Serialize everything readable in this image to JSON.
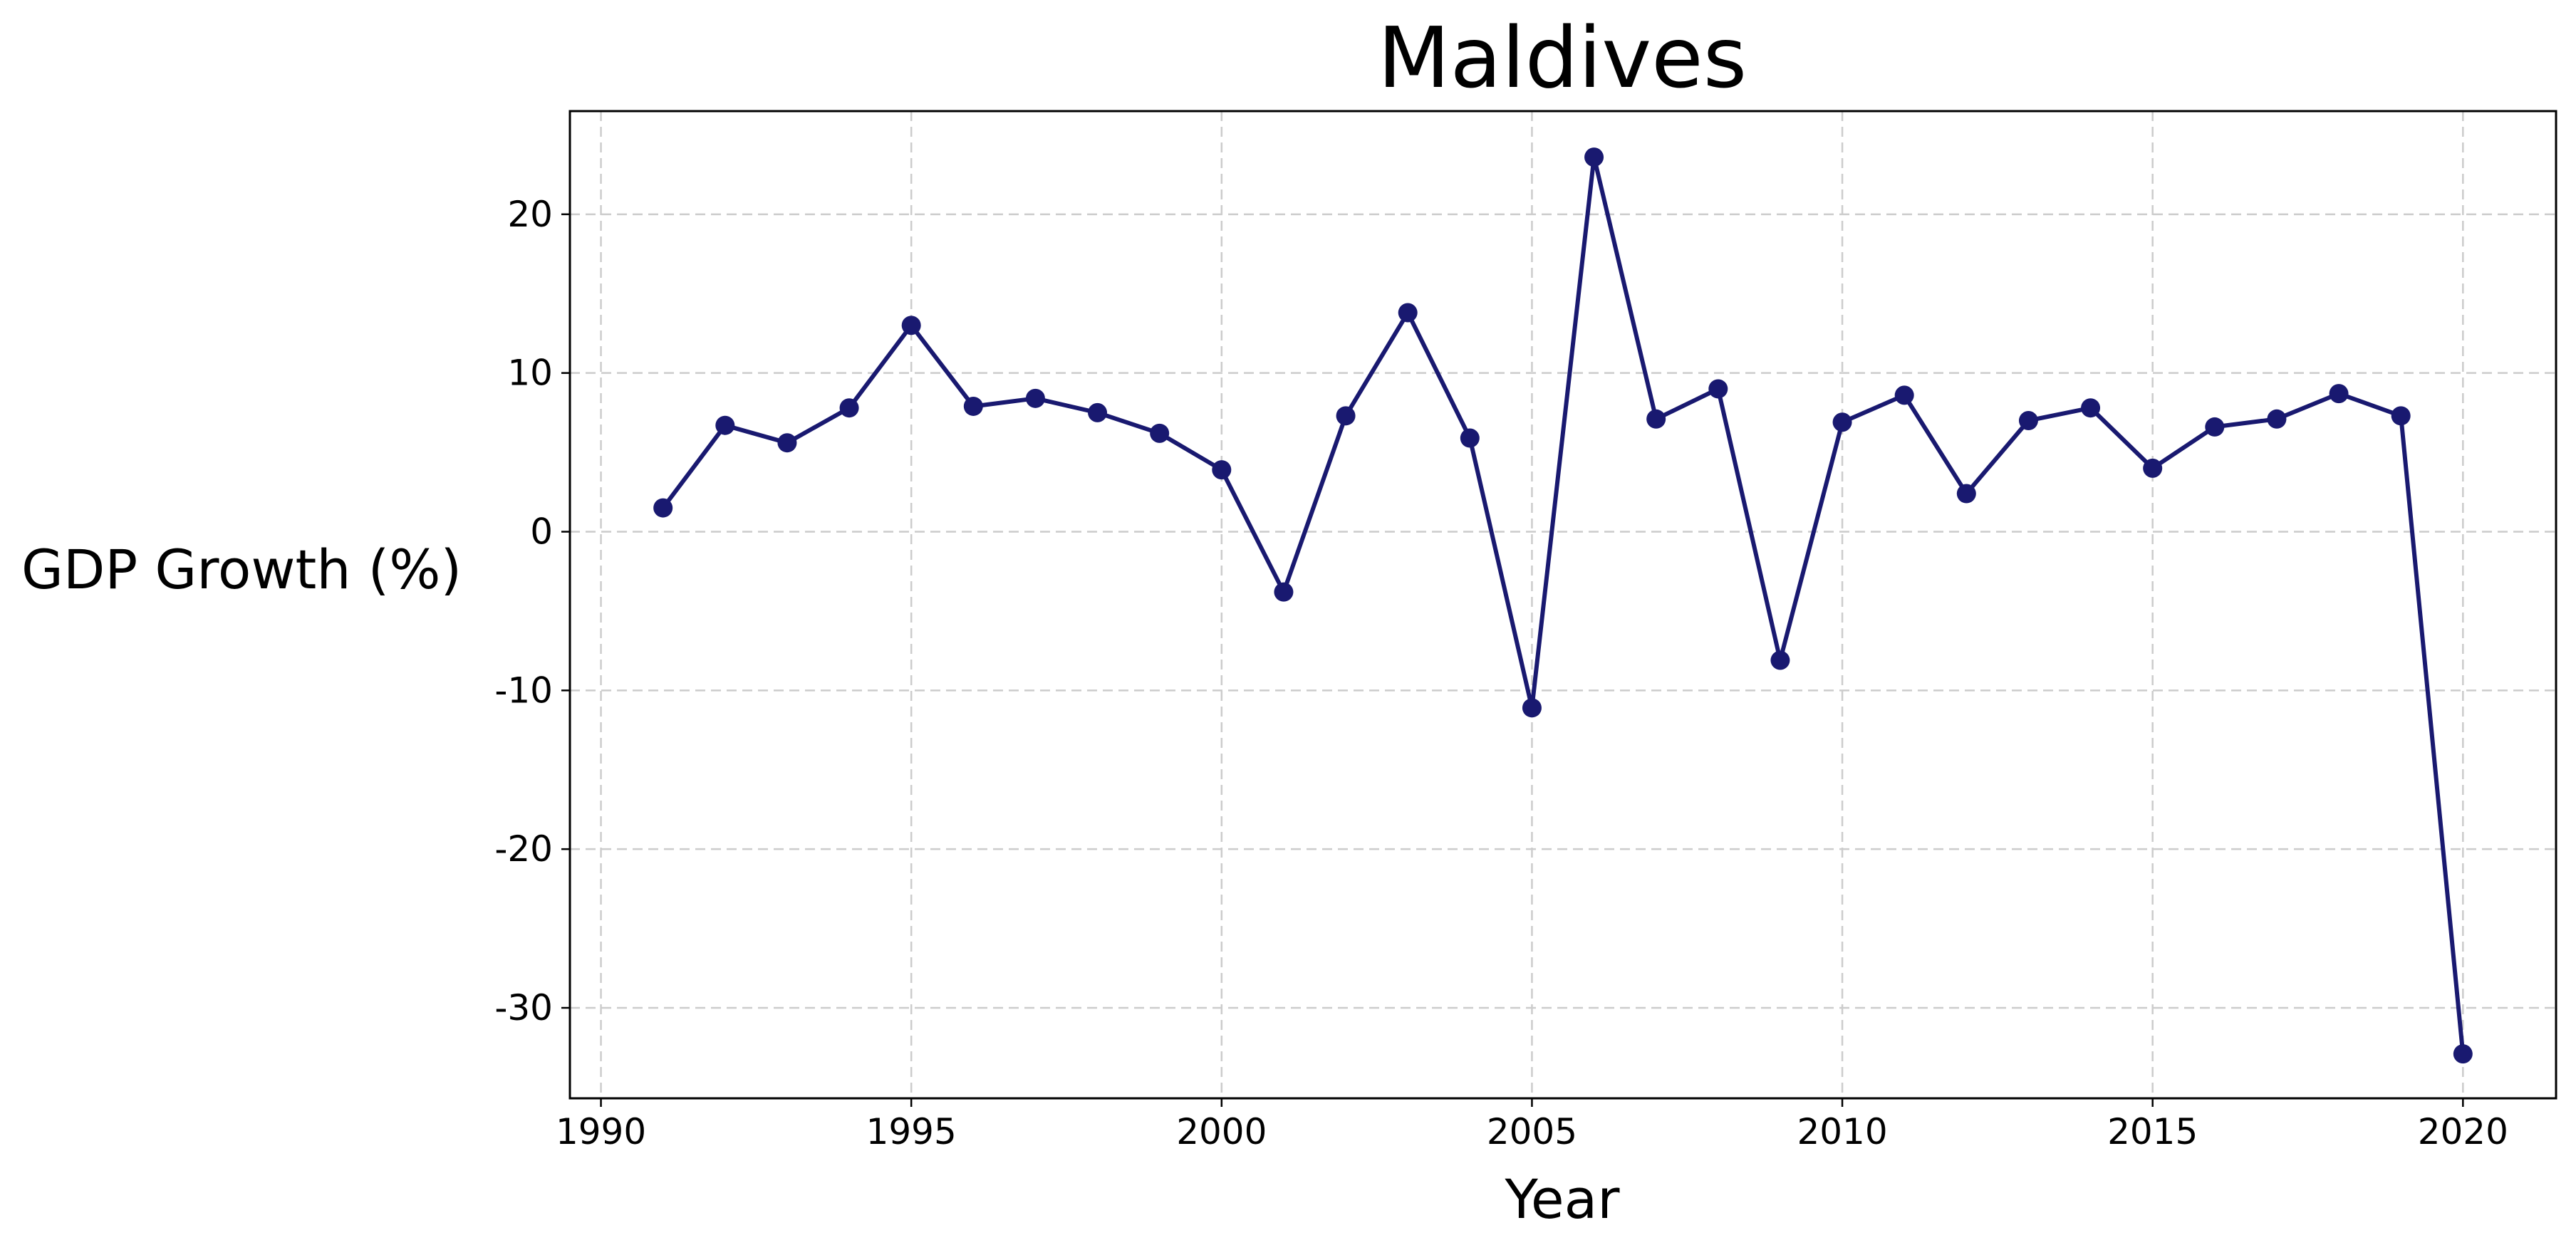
{
  "chart_data": {
    "type": "line",
    "title": "Maldives",
    "xlabel": "Year",
    "ylabel": "GDP Growth (%)",
    "xlim": [
      1989.5,
      2021.5
    ],
    "ylim": [
      -35.7,
      26.5
    ],
    "xticks": [
      1990,
      1995,
      2000,
      2005,
      2010,
      2015,
      2020
    ],
    "yticks": [
      -30,
      -20,
      -10,
      0,
      10,
      20
    ],
    "grid": true,
    "line_color": "#191970",
    "series": [
      {
        "x": [
          1991,
          1992,
          1993,
          1994,
          1995,
          1996,
          1997,
          1998,
          1999,
          2000,
          2001,
          2002,
          2003,
          2004,
          2005,
          2006,
          2007,
          2008,
          2009,
          2010,
          2011,
          2012,
          2013,
          2014,
          2015,
          2016,
          2017,
          2018,
          2019,
          2020
        ],
        "y": [
          1.5,
          6.7,
          5.6,
          7.8,
          13.0,
          7.9,
          8.4,
          7.5,
          6.2,
          3.9,
          -3.8,
          7.3,
          13.8,
          5.9,
          -11.1,
          23.6,
          7.1,
          9.0,
          -8.1,
          6.9,
          8.6,
          2.4,
          7.0,
          7.8,
          4.0,
          6.6,
          7.1,
          8.7,
          7.3,
          -32.9
        ]
      }
    ]
  }
}
